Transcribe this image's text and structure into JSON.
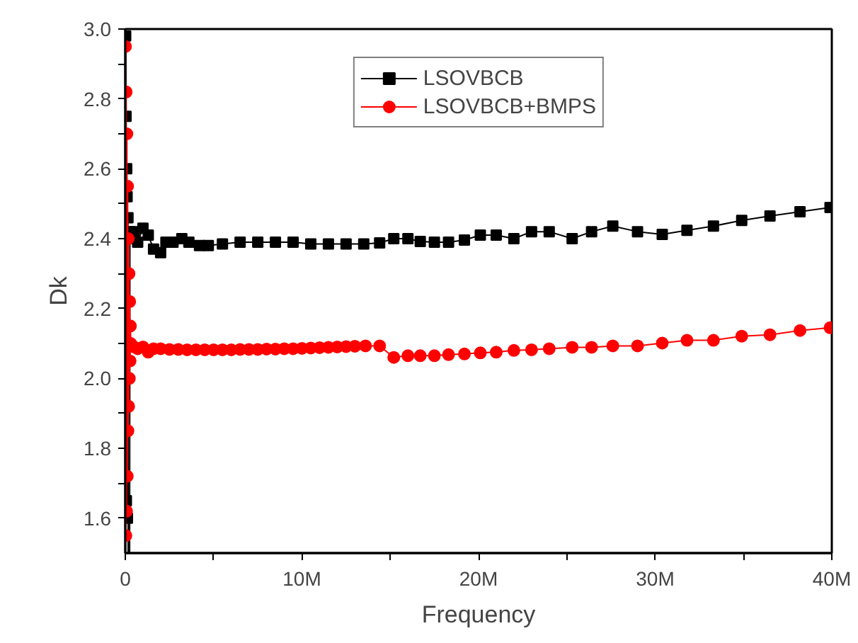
{
  "chart_data": {
    "type": "line",
    "xlabel": "Frequency",
    "ylabel": "Dk",
    "xlim": [
      0,
      40000000
    ],
    "ylim": [
      1.5,
      3.0
    ],
    "xticks": [
      0,
      {
        "value": 5000000,
        "label": null
      },
      {
        "value": 10000000,
        "label": "10M"
      },
      {
        "value": 15000000,
        "label": null
      },
      {
        "value": 20000000,
        "label": "20M"
      },
      {
        "value": 25000000,
        "label": null
      },
      {
        "value": 30000000,
        "label": "30M"
      },
      {
        "value": 35000000,
        "label": null
      },
      {
        "value": 40000000,
        "label": "40M"
      }
    ],
    "yticks": [
      1.6,
      {
        "value": 1.7,
        "label": null
      },
      1.8,
      {
        "value": 1.9,
        "label": null
      },
      {
        "value": 2.0,
        "label": "2.0"
      },
      {
        "value": 2.1,
        "label": null
      },
      2.2,
      {
        "value": 2.3,
        "label": null
      },
      2.4,
      {
        "value": 2.5,
        "label": null
      },
      2.6,
      {
        "value": 2.7,
        "label": null
      },
      2.8,
      {
        "value": 2.9,
        "label": null
      },
      {
        "value": 3.0,
        "label": "3.0"
      }
    ],
    "grid": false,
    "legend": "top",
    "line_style": "solid",
    "series": [
      {
        "name": "LSOVBCB",
        "color": "#000000",
        "marker": "square",
        "x": [
          20000,
          40000,
          60000,
          80000,
          100000,
          120000,
          150000,
          180000,
          220000,
          260000,
          300000,
          500000,
          700000,
          1000000,
          1300000,
          1600000,
          2000000,
          2300000,
          2700000,
          3200000,
          3600000,
          4200000,
          4700000,
          5500000,
          6500000,
          7500000,
          8500000,
          9500000,
          10500000,
          11500000,
          12500000,
          13500000,
          14400000,
          15200000,
          16000000,
          16700000,
          17500000,
          18300000,
          19200000,
          20100000,
          21000000,
          22000000,
          23000000,
          24000000,
          25300000,
          26400000,
          27600000,
          29000000,
          30400000,
          31800000,
          33300000,
          34900000,
          36500000,
          38200000,
          39900000
        ],
        "values": [
          2.98,
          2.75,
          1.65,
          2.6,
          2.52,
          1.6,
          2.46,
          null,
          null,
          2.42,
          2.4,
          2.42,
          2.39,
          2.43,
          2.41,
          2.37,
          2.36,
          2.39,
          2.39,
          2.4,
          2.39,
          2.38,
          2.38,
          2.385,
          2.39,
          2.39,
          2.39,
          2.39,
          2.385,
          2.385,
          2.385,
          2.385,
          2.388,
          2.4,
          2.4,
          2.392,
          2.39,
          2.39,
          2.396,
          2.41,
          2.41,
          2.4,
          2.42,
          2.42,
          2.4,
          2.42,
          2.436,
          2.42,
          2.412,
          2.424,
          2.436,
          2.452,
          2.465,
          2.477,
          2.489
        ]
      },
      {
        "name": "LSOVBCB+BMPS",
        "color": "#ff0000",
        "marker": "circle",
        "x": [
          10000,
          30000,
          50000,
          70000,
          90000,
          110000,
          130000,
          150000,
          170000,
          190000,
          210000,
          230000,
          250000,
          270000,
          290000,
          310000,
          500000,
          700000,
          1000000,
          1300000,
          1600000,
          2000000,
          2500000,
          3000000,
          3500000,
          4000000,
          4500000,
          5000000,
          5500000,
          6000000,
          6500000,
          7000000,
          7500000,
          8000000,
          8500000,
          9000000,
          9500000,
          10000000,
          10500000,
          11000000,
          11500000,
          12000000,
          12500000,
          13000000,
          13600000,
          14400000,
          15200000,
          16000000,
          16700000,
          17500000,
          18300000,
          19200000,
          20100000,
          21000000,
          22000000,
          23000000,
          24000000,
          25300000,
          26400000,
          27600000,
          29000000,
          30400000,
          31800000,
          33300000,
          34900000,
          36500000,
          38200000,
          39900000
        ],
        "values": [
          2.95,
          1.55,
          2.82,
          1.62,
          2.7,
          1.72,
          2.55,
          1.85,
          2.4,
          1.92,
          2.3,
          2.0,
          2.22,
          2.05,
          2.15,
          2.1,
          2.09,
          2.085,
          2.09,
          2.075,
          2.085,
          2.085,
          2.083,
          2.083,
          2.082,
          2.082,
          2.082,
          2.082,
          2.082,
          2.082,
          2.083,
          2.083,
          2.083,
          2.084,
          2.084,
          2.085,
          2.085,
          2.086,
          2.087,
          2.088,
          2.089,
          2.09,
          2.091,
          2.092,
          2.093,
          2.093,
          2.06,
          2.065,
          2.065,
          2.065,
          2.068,
          2.07,
          2.073,
          2.075,
          2.08,
          2.082,
          2.085,
          2.089,
          2.089,
          2.093,
          2.093,
          2.101,
          2.109,
          2.109,
          2.121,
          2.125,
          2.137,
          2.145
        ]
      }
    ]
  }
}
